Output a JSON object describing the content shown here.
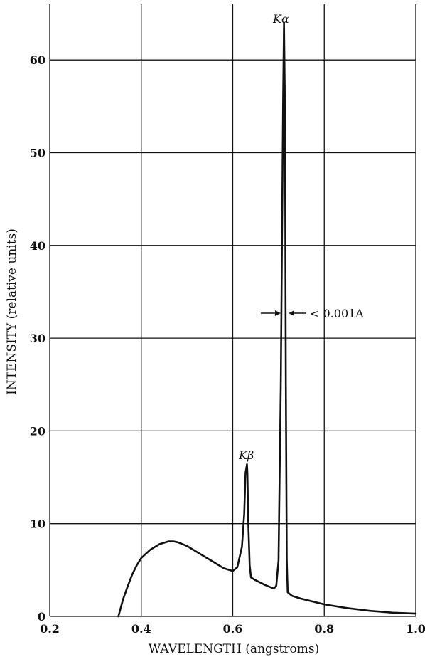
{
  "chart_data": {
    "type": "line",
    "title": "",
    "xlabel": "WAVELENGTH (angstroms)",
    "ylabel": "INTENSITY (relative units)",
    "xlim": [
      0.2,
      1.0
    ],
    "ylim": [
      0,
      66
    ],
    "x_ticks": [
      0.2,
      0.4,
      0.6,
      0.8,
      1.0
    ],
    "x_tick_labels": [
      "0.2",
      "0.4",
      "0.6",
      "0.8",
      "1.0"
    ],
    "y_ticks": [
      0,
      10,
      20,
      30,
      40,
      50,
      60
    ],
    "y_tick_labels": [
      "0",
      "10",
      "20",
      "30",
      "40",
      "50",
      "60"
    ],
    "grid": true,
    "series": [
      {
        "x": [
          0.35,
          0.36,
          0.37,
          0.38,
          0.39,
          0.4,
          0.42,
          0.44,
          0.46,
          0.47,
          0.48,
          0.5,
          0.52,
          0.54,
          0.56,
          0.58,
          0.6,
          0.61,
          0.62,
          0.625,
          0.628,
          0.631,
          0.632,
          0.634,
          0.637,
          0.64,
          0.65,
          0.67,
          0.69,
          0.695,
          0.7,
          0.705,
          0.71,
          0.712,
          0.714,
          0.716,
          0.718,
          0.72,
          0.725,
          0.73,
          0.75,
          0.8,
          0.85,
          0.9,
          0.95,
          1.0
        ],
        "y": [
          0,
          1.8,
          3.2,
          4.5,
          5.5,
          6.3,
          7.2,
          7.8,
          8.1,
          8.1,
          8.0,
          7.6,
          7.0,
          6.4,
          5.8,
          5.2,
          4.9,
          5.3,
          7.5,
          11.0,
          15.5,
          16.4,
          15.5,
          10.0,
          5.5,
          4.2,
          3.9,
          3.4,
          3.0,
          3.3,
          6.0,
          25.0,
          55.0,
          64.0,
          55.0,
          25.0,
          6.0,
          2.6,
          2.4,
          2.2,
          1.9,
          1.3,
          0.9,
          0.6,
          0.4,
          0.3
        ]
      }
    ],
    "annotations": [
      {
        "label_main": "K",
        "label_greek": "α",
        "x": 0.715,
        "y": 64
      },
      {
        "label_main": "K",
        "label_greek": "β",
        "x": 0.631,
        "y": 16.4
      },
      {
        "label": "< 0.001A",
        "x": 0.715,
        "y": 33
      }
    ]
  },
  "colors": {
    "line": "#111111",
    "grid": "#111111",
    "background": "#ffffff"
  }
}
